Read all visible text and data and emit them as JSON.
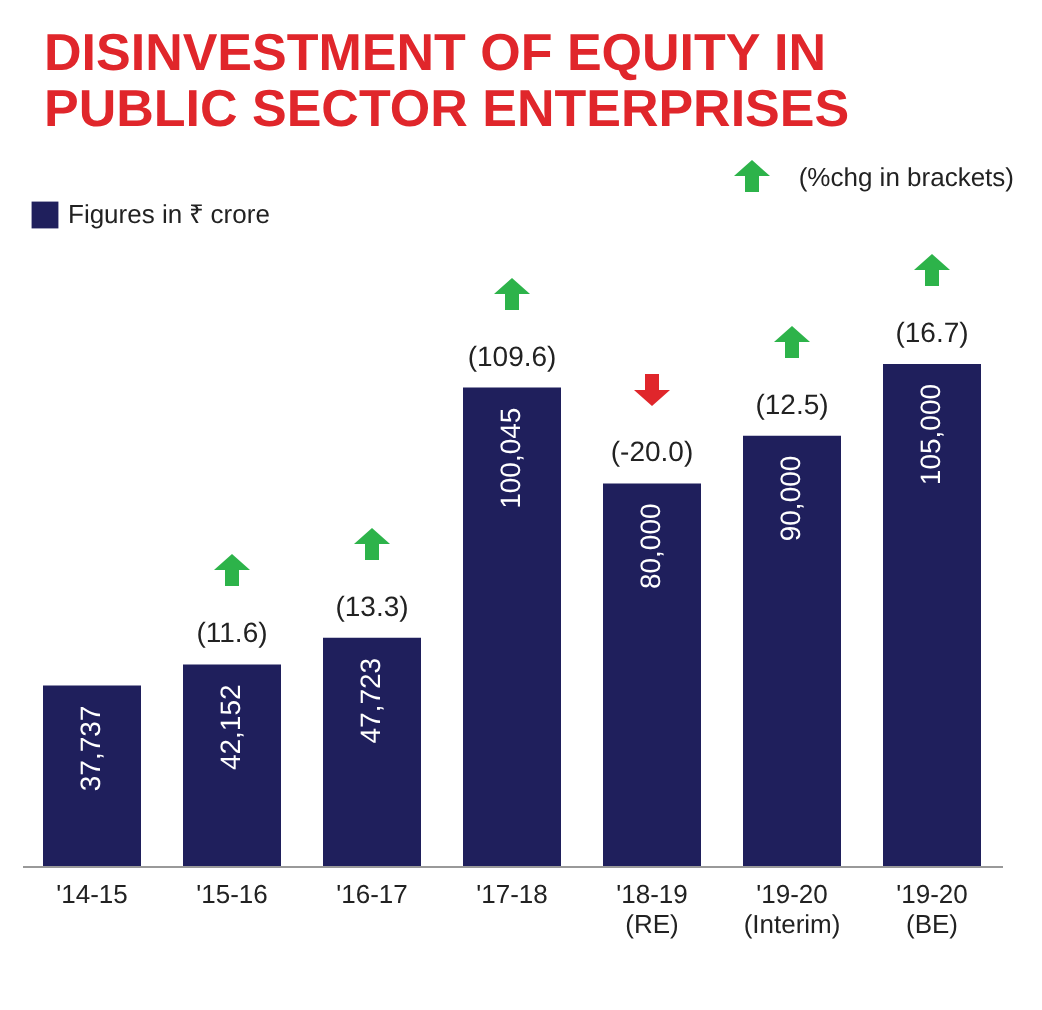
{
  "chart_data": {
    "type": "bar",
    "title": "DISINVESTMENT OF EQUITY IN PUBLIC SECTOR ENTERPRISES",
    "categories": [
      "'14-15",
      "'15-16",
      "'16-17",
      "'17-18",
      "'18-19 (RE)",
      "'19-20 (Interim)",
      "'19-20 (BE)"
    ],
    "series": [
      {
        "name": "Figures in ₹ crore",
        "color": "#1f1f5c",
        "values": [
          37737,
          42152,
          47723,
          100045,
          80000,
          90000,
          105000
        ],
        "value_labels": [
          "37,737",
          "42,152",
          "47,723",
          "100,045",
          "80,000",
          "90,000",
          "105,000"
        ]
      }
    ],
    "data_labels": true,
    "legend": "top left",
    "grid": false,
    "annotations": [
      "(%chg in brackets)",
      {
        "text": "(11.6)",
        "x": "'15-16",
        "y": 42152
      },
      {
        "text": "(13.3)",
        "x": "'16-17",
        "y": 47723
      },
      {
        "text": "(109.6)",
        "x": "'17-18",
        "y": 100045
      },
      {
        "text": "(-20.0)",
        "x": "'18-19 (RE)",
        "y": 80000
      },
      {
        "text": "(12.5)",
        "x": "'19-20 (Interim)",
        "y": 90000
      },
      {
        "text": "(16.7)",
        "x": "'19-20 (BE)",
        "y": 105000
      }
    ]
  }
}
